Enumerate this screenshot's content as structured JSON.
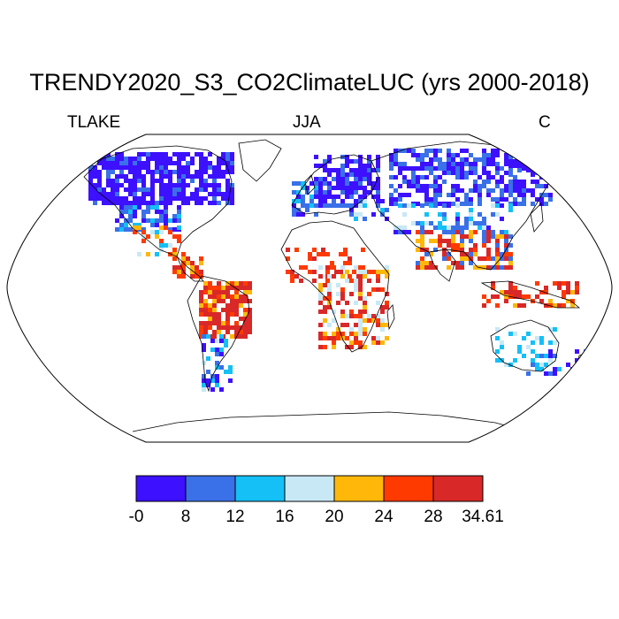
{
  "title": "TRENDY2020_S3_CO2ClimateLUC (yrs 2000-2018)",
  "subtitle_left": "TLAKE",
  "subtitle_center": "JJA",
  "subtitle_right": "C",
  "colorbar": {
    "colors": [
      "#3d10ff",
      "#3a70e8",
      "#14c0f6",
      "#c8e8f6",
      "#ffb80a",
      "#ff3a00",
      "#d92828"
    ],
    "labels": [
      "-0",
      "8",
      "12",
      "16",
      "20",
      "24",
      "28",
      "34.61"
    ]
  },
  "colors": {
    "land_outline": "#000000",
    "background": "#ffffff"
  }
}
